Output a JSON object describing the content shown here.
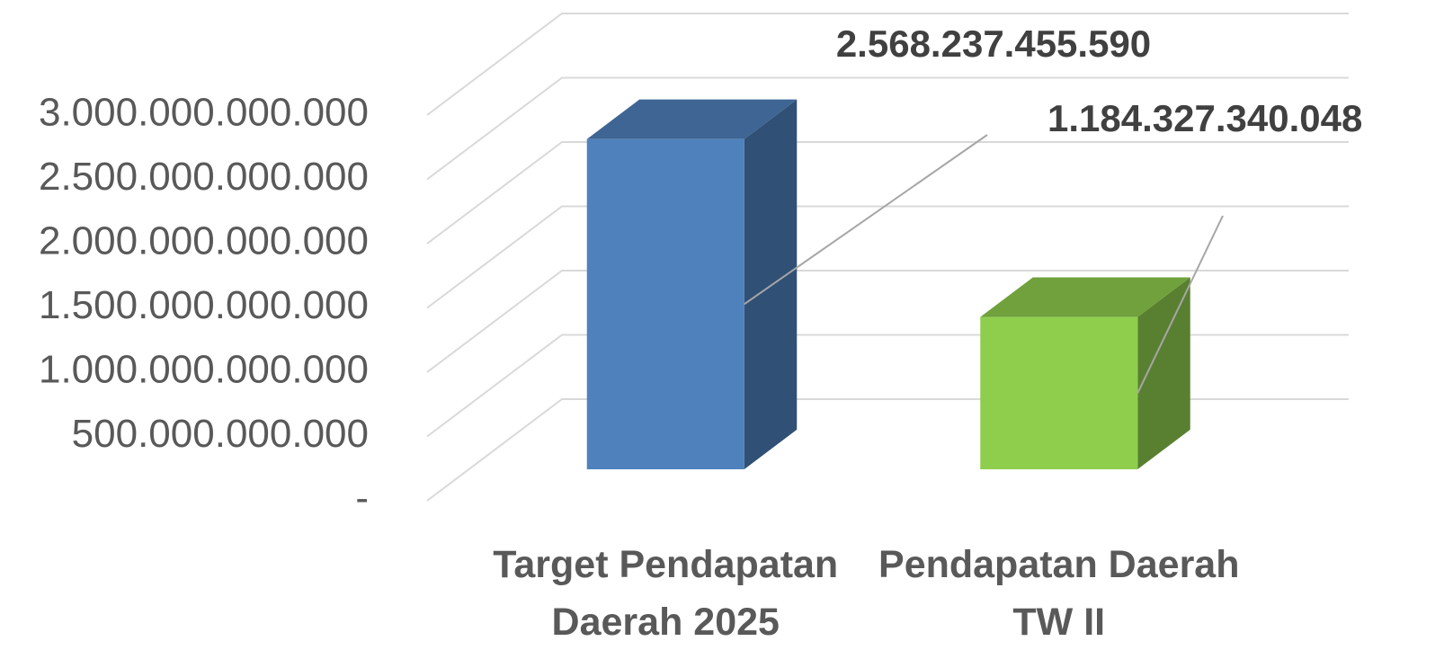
{
  "chart_data": {
    "type": "bar3d",
    "categories": [
      "Target Pendapatan Daerah 2025",
      "Pendapatan Daerah TW II"
    ],
    "values": [
      2568237455590,
      1184327340048
    ],
    "value_labels": [
      "2.568.237.455.590",
      "1.184.327.340.048"
    ],
    "colors": [
      "#4f81bd",
      "#8fce4d"
    ],
    "ylim": [
      0,
      3000000000000
    ],
    "yticks": [
      {
        "value": 0,
        "label": "-"
      },
      {
        "value": 500000000000,
        "label": "500.000.000.000"
      },
      {
        "value": 1000000000000,
        "label": "1.000.000.000.000"
      },
      {
        "value": 1500000000000,
        "label": "1.500.000.000.000"
      },
      {
        "value": 2000000000000,
        "label": "2.000.000.000.000"
      },
      {
        "value": 2500000000000,
        "label": "2.500.000.000.000"
      },
      {
        "value": 3000000000000,
        "label": "3.000.000.000.000"
      }
    ],
    "grid": true
  }
}
